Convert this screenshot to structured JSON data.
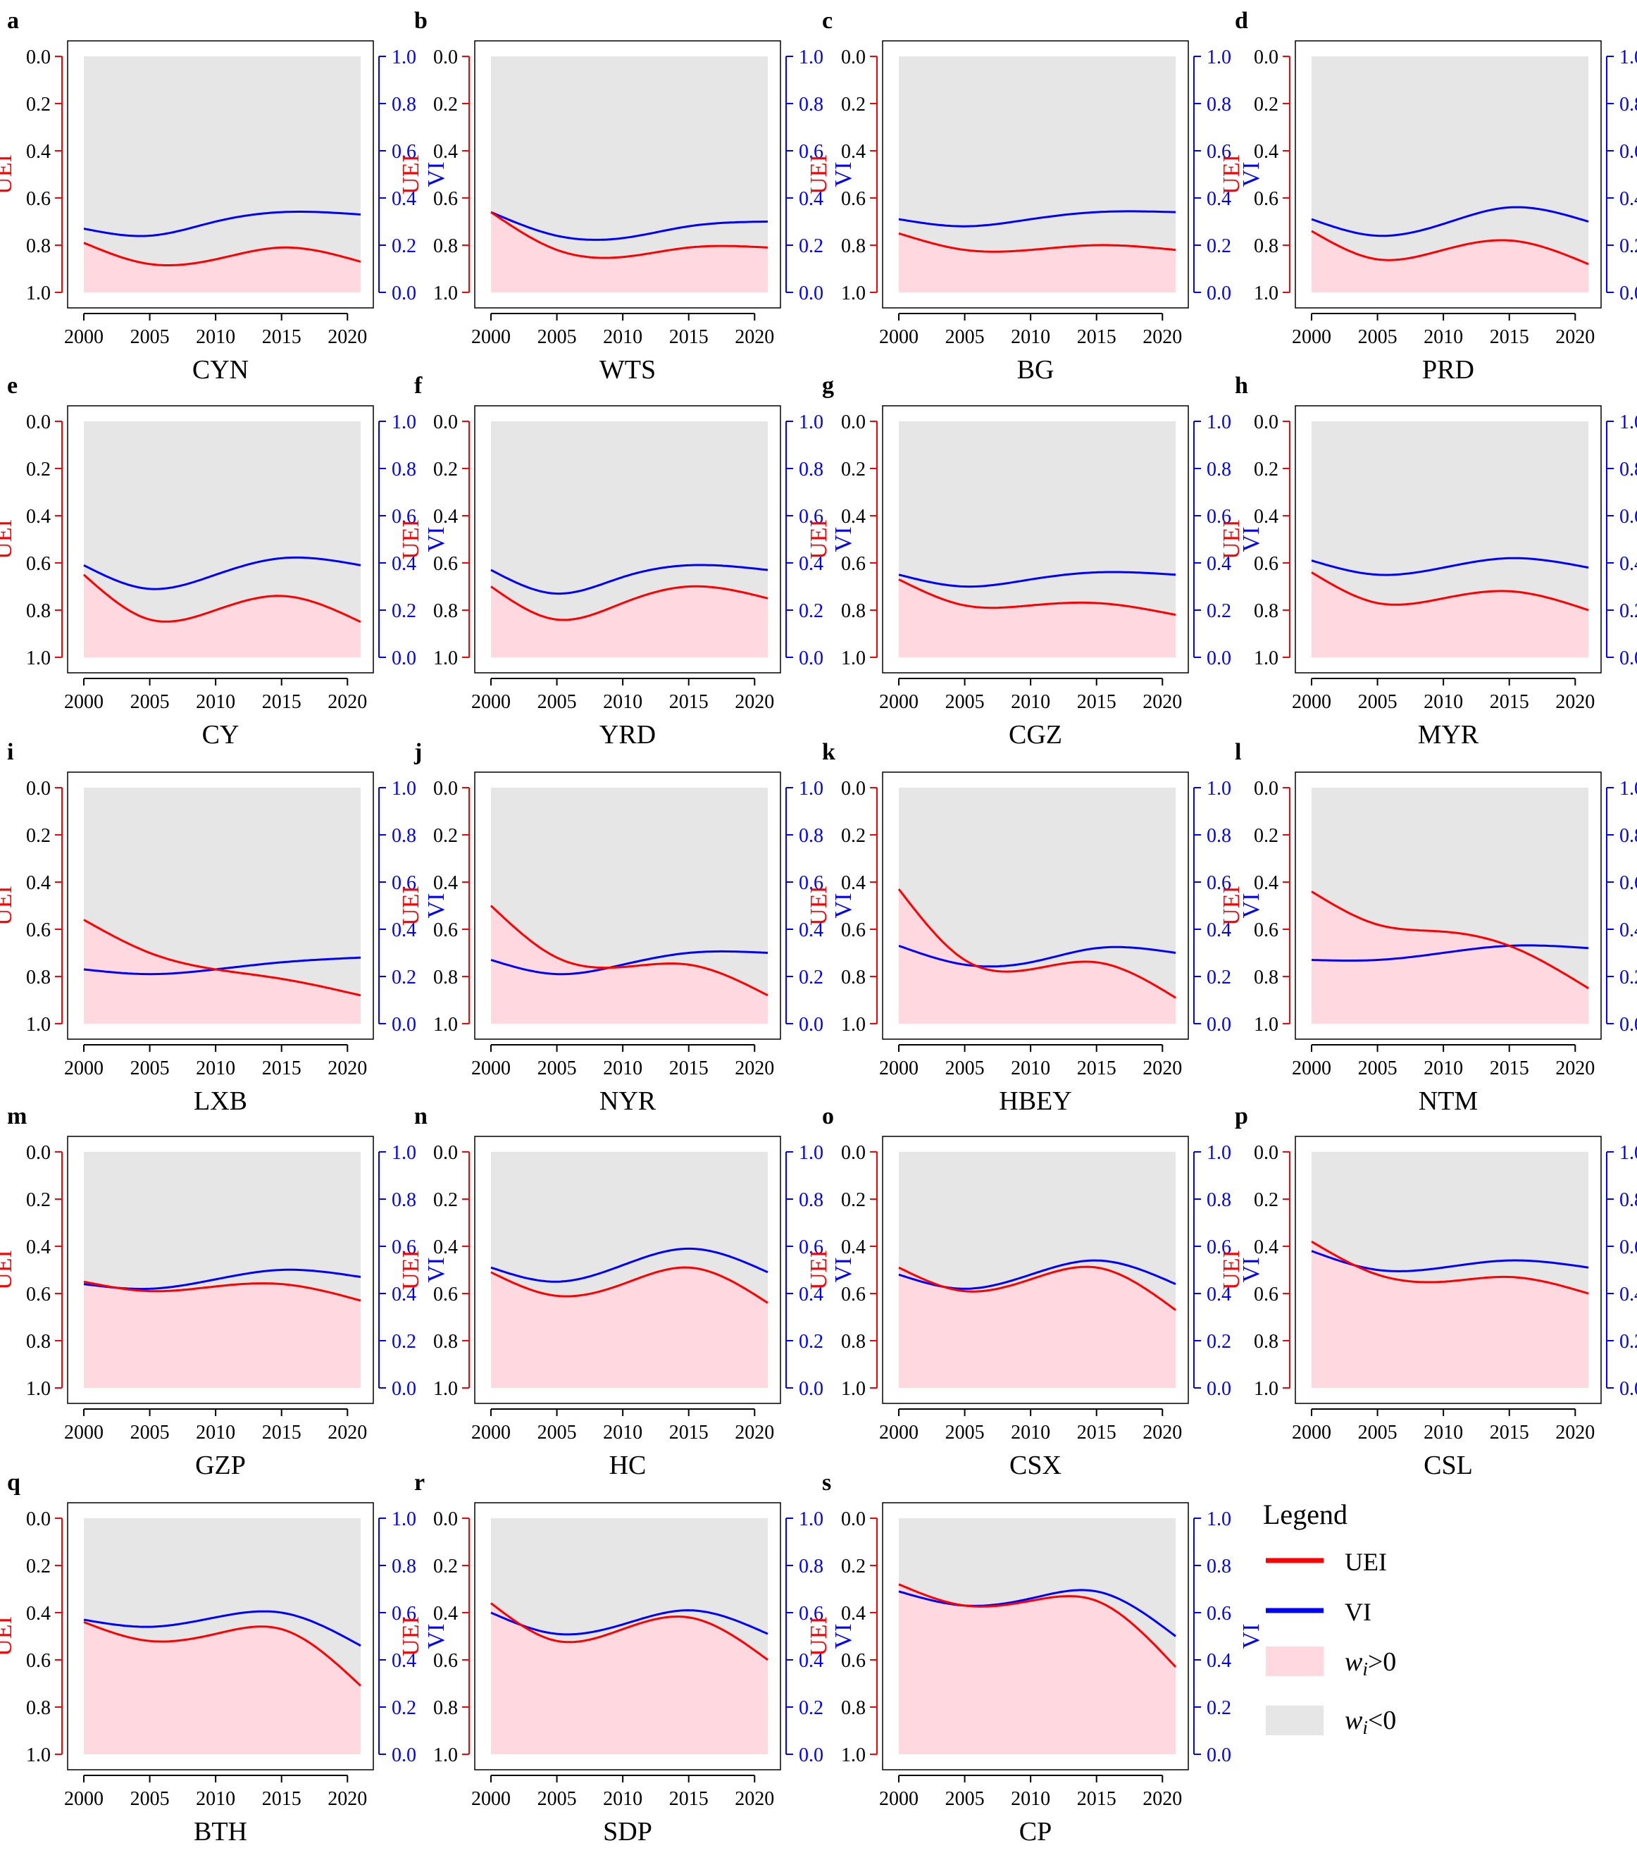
{
  "figure": {
    "x_ticks": [
      "2000",
      "2005",
      "2010",
      "2015",
      "2020"
    ],
    "uei_ticks": [
      "0.0",
      "0.2",
      "0.4",
      "0.6",
      "0.8",
      "1.0"
    ],
    "vi_ticks": [
      "1.0",
      "0.8",
      "0.6",
      "0.4",
      "0.2",
      "0.0"
    ],
    "uei_axis_label": "UEI",
    "vi_axis_label": "VI"
  },
  "legend": {
    "title": "Legend",
    "uei": "UEI",
    "vi": "VI",
    "pos_prefix": "w",
    "pos_sub": "i",
    "pos_suffix": ">0",
    "neg_prefix": "w",
    "neg_sub": "i",
    "neg_suffix": "<0"
  },
  "colors": {
    "uei": "#ff0000",
    "vi": "#0000ff",
    "positive_fill": "#ffd9df",
    "negative_fill": "#e6e6e6",
    "text": "#000000"
  },
  "chart_data": [
    {
      "letter": "a",
      "title": "CYN",
      "type": "line",
      "x": [
        2000,
        2005,
        2010,
        2015,
        2021
      ],
      "series": [
        {
          "name": "UEI",
          "values": [
            0.79,
            0.88,
            0.86,
            0.81,
            0.87
          ]
        },
        {
          "name": "VI",
          "values": [
            0.27,
            0.24,
            0.3,
            0.34,
            0.33
          ]
        }
      ],
      "xlim": [
        2000,
        2021
      ],
      "ylim_uei": [
        1.0,
        0.0
      ],
      "ylim_vi": [
        0.0,
        1.0
      ]
    },
    {
      "letter": "b",
      "title": "WTS",
      "type": "line",
      "x": [
        2000,
        2005,
        2010,
        2015,
        2021
      ],
      "series": [
        {
          "name": "UEI",
          "values": [
            0.66,
            0.82,
            0.85,
            0.81,
            0.81
          ]
        },
        {
          "name": "VI",
          "values": [
            0.34,
            0.24,
            0.23,
            0.28,
            0.3
          ]
        }
      ],
      "xlim": [
        2000,
        2021
      ],
      "ylim_uei": [
        1.0,
        0.0
      ],
      "ylim_vi": [
        0.0,
        1.0
      ]
    },
    {
      "letter": "c",
      "title": "BG",
      "type": "line",
      "x": [
        2000,
        2005,
        2010,
        2015,
        2021
      ],
      "series": [
        {
          "name": "UEI",
          "values": [
            0.75,
            0.82,
            0.82,
            0.8,
            0.82
          ]
        },
        {
          "name": "VI",
          "values": [
            0.31,
            0.28,
            0.31,
            0.34,
            0.34
          ]
        }
      ],
      "xlim": [
        2000,
        2021
      ],
      "ylim_uei": [
        1.0,
        0.0
      ],
      "ylim_vi": [
        0.0,
        1.0
      ]
    },
    {
      "letter": "d",
      "title": "PRD",
      "type": "line",
      "x": [
        2000,
        2005,
        2010,
        2015,
        2021
      ],
      "series": [
        {
          "name": "UEI",
          "values": [
            0.74,
            0.86,
            0.82,
            0.78,
            0.88
          ]
        },
        {
          "name": "VI",
          "values": [
            0.31,
            0.24,
            0.29,
            0.36,
            0.3
          ]
        }
      ],
      "xlim": [
        2000,
        2021
      ],
      "ylim_uei": [
        1.0,
        0.0
      ],
      "ylim_vi": [
        0.0,
        1.0
      ]
    },
    {
      "letter": "e",
      "title": "CY",
      "type": "line",
      "x": [
        2000,
        2005,
        2010,
        2015,
        2021
      ],
      "series": [
        {
          "name": "UEI",
          "values": [
            0.65,
            0.84,
            0.8,
            0.74,
            0.85
          ]
        },
        {
          "name": "VI",
          "values": [
            0.39,
            0.29,
            0.35,
            0.42,
            0.39
          ]
        }
      ],
      "xlim": [
        2000,
        2021
      ],
      "ylim_uei": [
        1.0,
        0.0
      ],
      "ylim_vi": [
        0.0,
        1.0
      ]
    },
    {
      "letter": "f",
      "title": "YRD",
      "type": "line",
      "x": [
        2000,
        2005,
        2010,
        2015,
        2021
      ],
      "series": [
        {
          "name": "UEI",
          "values": [
            0.7,
            0.84,
            0.77,
            0.7,
            0.75
          ]
        },
        {
          "name": "VI",
          "values": [
            0.37,
            0.27,
            0.34,
            0.39,
            0.37
          ]
        }
      ],
      "xlim": [
        2000,
        2021
      ],
      "ylim_uei": [
        1.0,
        0.0
      ],
      "ylim_vi": [
        0.0,
        1.0
      ]
    },
    {
      "letter": "g",
      "title": "CGZ",
      "type": "line",
      "x": [
        2000,
        2005,
        2010,
        2015,
        2021
      ],
      "series": [
        {
          "name": "UEI",
          "values": [
            0.67,
            0.78,
            0.78,
            0.77,
            0.82
          ]
        },
        {
          "name": "VI",
          "values": [
            0.35,
            0.3,
            0.33,
            0.36,
            0.35
          ]
        }
      ],
      "xlim": [
        2000,
        2021
      ],
      "ylim_uei": [
        1.0,
        0.0
      ],
      "ylim_vi": [
        0.0,
        1.0
      ]
    },
    {
      "letter": "h",
      "title": "MYR",
      "type": "line",
      "x": [
        2000,
        2005,
        2010,
        2015,
        2021
      ],
      "series": [
        {
          "name": "UEI",
          "values": [
            0.64,
            0.77,
            0.75,
            0.72,
            0.8
          ]
        },
        {
          "name": "VI",
          "values": [
            0.41,
            0.35,
            0.38,
            0.42,
            0.38
          ]
        }
      ],
      "xlim": [
        2000,
        2021
      ],
      "ylim_uei": [
        1.0,
        0.0
      ],
      "ylim_vi": [
        0.0,
        1.0
      ]
    },
    {
      "letter": "i",
      "title": "LXB",
      "type": "line",
      "x": [
        2000,
        2005,
        2010,
        2015,
        2021
      ],
      "series": [
        {
          "name": "UEI",
          "values": [
            0.56,
            0.7,
            0.77,
            0.81,
            0.88
          ]
        },
        {
          "name": "VI",
          "values": [
            0.23,
            0.21,
            0.23,
            0.26,
            0.28
          ]
        }
      ],
      "xlim": [
        2000,
        2021
      ],
      "ylim_uei": [
        1.0,
        0.0
      ],
      "ylim_vi": [
        0.0,
        1.0
      ]
    },
    {
      "letter": "j",
      "title": "NYR",
      "type": "line",
      "x": [
        2000,
        2005,
        2010,
        2015,
        2021
      ],
      "series": [
        {
          "name": "UEI",
          "values": [
            0.5,
            0.72,
            0.76,
            0.75,
            0.88
          ]
        },
        {
          "name": "VI",
          "values": [
            0.27,
            0.21,
            0.25,
            0.3,
            0.3
          ]
        }
      ],
      "xlim": [
        2000,
        2021
      ],
      "ylim_uei": [
        1.0,
        0.0
      ],
      "ylim_vi": [
        0.0,
        1.0
      ]
    },
    {
      "letter": "k",
      "title": "HBEY",
      "type": "line",
      "x": [
        2000,
        2005,
        2010,
        2015,
        2021
      ],
      "series": [
        {
          "name": "UEI",
          "values": [
            0.43,
            0.73,
            0.77,
            0.74,
            0.89
          ]
        },
        {
          "name": "VI",
          "values": [
            0.33,
            0.25,
            0.26,
            0.32,
            0.3
          ]
        }
      ],
      "xlim": [
        2000,
        2021
      ],
      "ylim_uei": [
        1.0,
        0.0
      ],
      "ylim_vi": [
        0.0,
        1.0
      ]
    },
    {
      "letter": "l",
      "title": "NTM",
      "type": "line",
      "x": [
        2000,
        2005,
        2010,
        2015,
        2021
      ],
      "series": [
        {
          "name": "UEI",
          "values": [
            0.44,
            0.58,
            0.61,
            0.67,
            0.85
          ]
        },
        {
          "name": "VI",
          "values": [
            0.27,
            0.27,
            0.3,
            0.33,
            0.32
          ]
        }
      ],
      "xlim": [
        2000,
        2021
      ],
      "ylim_uei": [
        1.0,
        0.0
      ],
      "ylim_vi": [
        0.0,
        1.0
      ]
    },
    {
      "letter": "m",
      "title": "GZP",
      "type": "line",
      "x": [
        2000,
        2005,
        2010,
        2015,
        2021
      ],
      "series": [
        {
          "name": "UEI",
          "values": [
            0.55,
            0.59,
            0.57,
            0.56,
            0.63
          ]
        },
        {
          "name": "VI",
          "values": [
            0.44,
            0.42,
            0.46,
            0.5,
            0.47
          ]
        }
      ],
      "xlim": [
        2000,
        2021
      ],
      "ylim_uei": [
        1.0,
        0.0
      ],
      "ylim_vi": [
        0.0,
        1.0
      ]
    },
    {
      "letter": "n",
      "title": "HC",
      "type": "line",
      "x": [
        2000,
        2005,
        2010,
        2015,
        2021
      ],
      "series": [
        {
          "name": "UEI",
          "values": [
            0.51,
            0.61,
            0.56,
            0.49,
            0.64
          ]
        },
        {
          "name": "VI",
          "values": [
            0.51,
            0.45,
            0.52,
            0.59,
            0.49
          ]
        }
      ],
      "xlim": [
        2000,
        2021
      ],
      "ylim_uei": [
        1.0,
        0.0
      ],
      "ylim_vi": [
        0.0,
        1.0
      ]
    },
    {
      "letter": "o",
      "title": "CSX",
      "type": "line",
      "x": [
        2000,
        2005,
        2010,
        2015,
        2021
      ],
      "series": [
        {
          "name": "UEI",
          "values": [
            0.49,
            0.59,
            0.54,
            0.49,
            0.67
          ]
        },
        {
          "name": "VI",
          "values": [
            0.48,
            0.42,
            0.48,
            0.54,
            0.44
          ]
        }
      ],
      "xlim": [
        2000,
        2021
      ],
      "ylim_uei": [
        1.0,
        0.0
      ],
      "ylim_vi": [
        0.0,
        1.0
      ]
    },
    {
      "letter": "p",
      "title": "CSL",
      "type": "line",
      "x": [
        2000,
        2005,
        2010,
        2015,
        2021
      ],
      "series": [
        {
          "name": "UEI",
          "values": [
            0.38,
            0.52,
            0.55,
            0.53,
            0.6
          ]
        },
        {
          "name": "VI",
          "values": [
            0.58,
            0.5,
            0.51,
            0.54,
            0.51
          ]
        }
      ],
      "xlim": [
        2000,
        2021
      ],
      "ylim_uei": [
        1.0,
        0.0
      ],
      "ylim_vi": [
        0.0,
        1.0
      ]
    },
    {
      "letter": "q",
      "title": "BTH",
      "type": "line",
      "x": [
        2000,
        2005,
        2010,
        2015,
        2021
      ],
      "series": [
        {
          "name": "UEI",
          "values": [
            0.44,
            0.52,
            0.49,
            0.47,
            0.71
          ]
        },
        {
          "name": "VI",
          "values": [
            0.57,
            0.54,
            0.58,
            0.6,
            0.46
          ]
        }
      ],
      "xlim": [
        2000,
        2021
      ],
      "ylim_uei": [
        1.0,
        0.0
      ],
      "ylim_vi": [
        0.0,
        1.0
      ]
    },
    {
      "letter": "r",
      "title": "SDP",
      "type": "line",
      "x": [
        2000,
        2005,
        2010,
        2015,
        2021
      ],
      "series": [
        {
          "name": "UEI",
          "values": [
            0.36,
            0.52,
            0.47,
            0.42,
            0.6
          ]
        },
        {
          "name": "VI",
          "values": [
            0.6,
            0.51,
            0.55,
            0.61,
            0.51
          ]
        }
      ],
      "xlim": [
        2000,
        2021
      ],
      "ylim_uei": [
        1.0,
        0.0
      ],
      "ylim_vi": [
        0.0,
        1.0
      ]
    },
    {
      "letter": "s",
      "title": "CP",
      "type": "line",
      "x": [
        2000,
        2005,
        2010,
        2015,
        2021
      ],
      "series": [
        {
          "name": "UEI",
          "values": [
            0.28,
            0.37,
            0.35,
            0.35,
            0.63
          ]
        },
        {
          "name": "VI",
          "values": [
            0.69,
            0.63,
            0.66,
            0.69,
            0.5
          ]
        }
      ],
      "xlim": [
        2000,
        2021
      ],
      "ylim_uei": [
        1.0,
        0.0
      ],
      "ylim_vi": [
        0.0,
        1.0
      ]
    }
  ]
}
